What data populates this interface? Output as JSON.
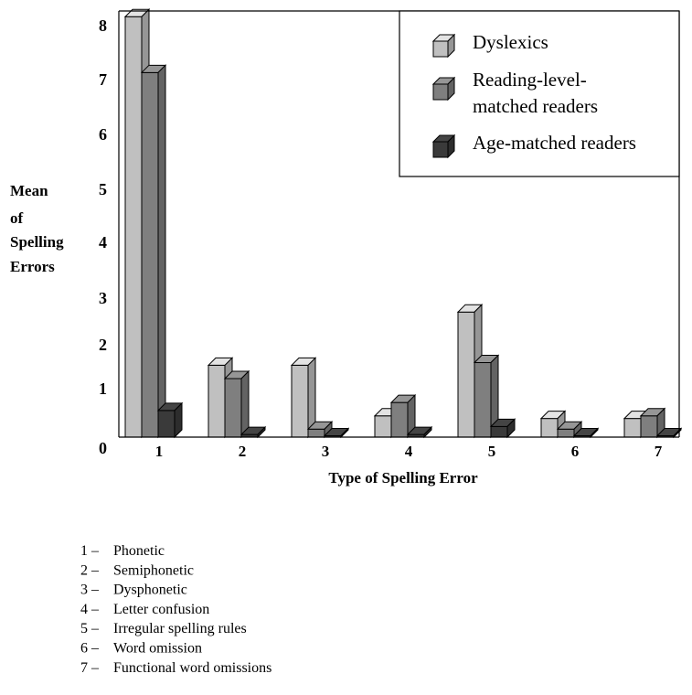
{
  "chart_data": {
    "type": "bar",
    "ylabel": [
      "Mean",
      "of",
      "Spelling",
      "Errors"
    ],
    "xlabel": "Type of Spelling Error",
    "categories": [
      "1",
      "2",
      "3",
      "4",
      "5",
      "6",
      "7"
    ],
    "y_ticks": [
      "0",
      "1",
      "2",
      "3",
      "4",
      "5",
      "6",
      "7",
      "8"
    ],
    "ylim": [
      0,
      8
    ],
    "series": [
      {
        "name": "Dyslexics",
        "color": "#c0c0c0",
        "values": [
          7.9,
          1.35,
          1.35,
          0.4,
          2.35,
          0.35,
          0.35
        ]
      },
      {
        "name": "Reading-level-matched readers",
        "name_lines": [
          "Reading-level-",
          "matched readers"
        ],
        "color": "#7f7f7f",
        "values": [
          6.85,
          1.1,
          0.15,
          0.65,
          1.4,
          0.15,
          0.4
        ]
      },
      {
        "name": "Age-matched readers",
        "color": "#3a3a3a",
        "values": [
          0.5,
          0.05,
          0.02,
          0.05,
          0.2,
          0.02,
          0.02
        ]
      }
    ],
    "legend_position": "top-right",
    "grid": false
  },
  "key_list": [
    {
      "num": "1",
      "label": "Phonetic"
    },
    {
      "num": "2",
      "label": "Semiphonetic"
    },
    {
      "num": "3",
      "label": "Dysphonetic"
    },
    {
      "num": "4",
      "label": "Letter confusion"
    },
    {
      "num": "5",
      "label": "Irregular spelling rules"
    },
    {
      "num": "6",
      "label": "Word omission"
    },
    {
      "num": "7",
      "label": "Functional word omissions"
    }
  ]
}
